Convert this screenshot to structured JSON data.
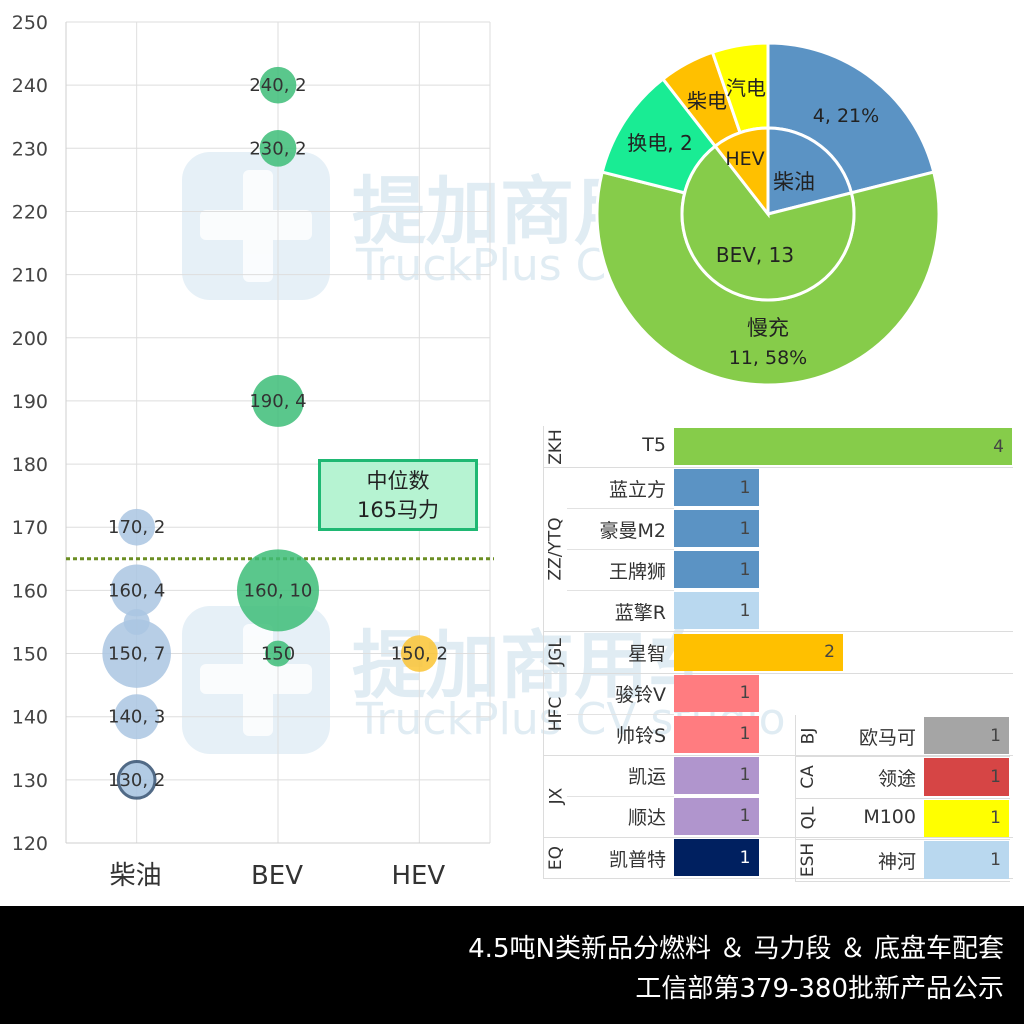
{
  "watermark": {
    "brand_cn": "提加商用车",
    "brand_en": "TruckPlus CV studio"
  },
  "median_box": {
    "line1": "中位数",
    "line2": "165马力"
  },
  "footer": {
    "line1": "4.5吨N类新品分燃料 ＆ 马力段 ＆ 底盘车配套",
    "line2": "工信部第379-380批新产品公示"
  },
  "chart_data": [
    {
      "type": "scatter",
      "subtype": "bubble",
      "categories": [
        "柴油",
        "BEV",
        "HEV"
      ],
      "ylim": [
        120,
        250
      ],
      "yticks": [
        120,
        130,
        140,
        150,
        160,
        170,
        180,
        190,
        200,
        210,
        220,
        230,
        240,
        250
      ],
      "grid": true,
      "median": 165,
      "points": [
        {
          "x": "柴油",
          "y": 170,
          "count": 2,
          "label": "170, 2",
          "color": "#aac6e2"
        },
        {
          "x": "柴油",
          "y": 160,
          "count": 4,
          "label": "160, 4",
          "color": "#aac6e2"
        },
        {
          "x": "柴油",
          "y": 155,
          "count": 1,
          "label": "",
          "color": "#aac6e2"
        },
        {
          "x": "柴油",
          "y": 150,
          "count": 7,
          "label": "150, 7",
          "color": "#aac6e2"
        },
        {
          "x": "柴油",
          "y": 140,
          "count": 3,
          "label": "140, 3",
          "color": "#aac6e2"
        },
        {
          "x": "柴油",
          "y": 130,
          "count": 2,
          "label": "130, 2",
          "color": "#aac6e2",
          "stroke": "#3f5a7a"
        },
        {
          "x": "BEV",
          "y": 240,
          "count": 2,
          "label": "240, 2",
          "color": "#3dbd78"
        },
        {
          "x": "BEV",
          "y": 230,
          "count": 2,
          "label": "230, 2",
          "color": "#3dbd78"
        },
        {
          "x": "BEV",
          "y": 190,
          "count": 4,
          "label": "190, 4",
          "color": "#3dbd78"
        },
        {
          "x": "BEV",
          "y": 160,
          "count": 10,
          "label": "160, 10",
          "color": "#3dbd78"
        },
        {
          "x": "BEV",
          "y": 150,
          "count": 1,
          "label": "150",
          "color": "#3dbd78"
        },
        {
          "x": "HEV",
          "y": 150,
          "count": 2,
          "label": "150, 2",
          "color": "#fac434"
        }
      ]
    },
    {
      "type": "pie",
      "subtype": "sunburst",
      "inner": [
        {
          "label": "柴油",
          "value": 4,
          "color": "#5b93c4"
        },
        {
          "label": "BEV, 13",
          "value": 13,
          "color": "#86cc4a"
        },
        {
          "label": "HEV",
          "value": 2,
          "color": "#ffc000"
        }
      ],
      "outer": [
        {
          "label": "4, 21%",
          "value": 4,
          "color": "#5b93c4"
        },
        {
          "label1": "慢充",
          "label2": "11, 58%",
          "value": 11,
          "color": "#86cc4a"
        },
        {
          "label": "换电, 2",
          "value": 2,
          "color": "#19ec94"
        },
        {
          "label": "柴电",
          "value": 1,
          "color": "#ffc000"
        },
        {
          "label": "汽电",
          "value": 1,
          "color": "#ffff00"
        }
      ]
    },
    {
      "type": "bar",
      "orientation": "horizontal",
      "xlim": [
        0,
        4
      ],
      "groups": [
        {
          "name": "ZKH",
          "rows": [
            {
              "label": "T5",
              "value": 4,
              "color": "#86cc4a"
            }
          ]
        },
        {
          "name": "ZZ/YTQ",
          "rows": [
            {
              "label": "蓝立方",
              "value": 1,
              "color": "#5b93c4"
            },
            {
              "label": "豪曼M2",
              "value": 1,
              "color": "#5b93c4"
            },
            {
              "label": "王牌狮",
              "value": 1,
              "color": "#5b93c4"
            },
            {
              "label": "蓝擎R",
              "value": 1,
              "color": "#b9d8ef"
            }
          ]
        },
        {
          "name": "JGL",
          "rows": [
            {
              "label": "星智",
              "value": 2,
              "color": "#ffc000"
            }
          ]
        },
        {
          "name": "HFC",
          "rows": [
            {
              "label": "骏铃V",
              "value": 1,
              "color": "#ff7c80"
            },
            {
              "label": "帅铃S",
              "value": 1,
              "color": "#ff7c80"
            }
          ]
        },
        {
          "name": "JX",
          "rows": [
            {
              "label": "凯运",
              "value": 1,
              "color": "#b095cd"
            },
            {
              "label": "顺达",
              "value": 1,
              "color": "#b095cd"
            }
          ]
        },
        {
          "name": "EQ",
          "rows": [
            {
              "label": "凯普特",
              "value": 1,
              "color": "#002060"
            }
          ]
        }
      ]
    },
    {
      "type": "bar",
      "orientation": "horizontal",
      "xlim": [
        0,
        1
      ],
      "groups": [
        {
          "name": "BJ",
          "rows": [
            {
              "label": "欧马可",
              "value": 1,
              "color": "#a5a5a5"
            }
          ]
        },
        {
          "name": "CA",
          "rows": [
            {
              "label": "领途",
              "value": 1,
              "color": "#d64545"
            }
          ]
        },
        {
          "name": "QL",
          "rows": [
            {
              "label": "M100",
              "value": 1,
              "color": "#ffff00"
            }
          ]
        },
        {
          "name": "ESH",
          "rows": [
            {
              "label": "神河",
              "value": 1,
              "color": "#b9d8ef"
            }
          ]
        }
      ]
    }
  ]
}
